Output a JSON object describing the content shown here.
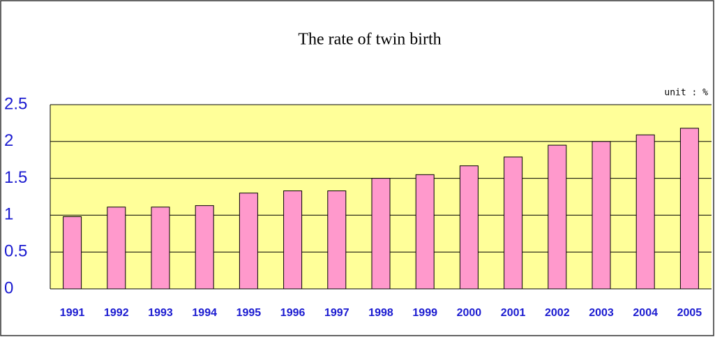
{
  "chart_data": {
    "type": "bar",
    "title": "The rate of twin birth",
    "unit_label": "unit : %",
    "categories": [
      "1991",
      "1992",
      "1993",
      "1994",
      "1995",
      "1996",
      "1997",
      "1998",
      "1999",
      "2000",
      "2001",
      "2002",
      "2003",
      "2004",
      "2005"
    ],
    "values": [
      0.98,
      1.11,
      1.11,
      1.13,
      1.3,
      1.33,
      1.33,
      1.5,
      1.55,
      1.67,
      1.79,
      1.95,
      2.0,
      2.09,
      2.18
    ],
    "color": "#ff99cc",
    "plot_background": "#ffff99",
    "ylim": [
      0,
      2.5
    ],
    "yticks": [
      0,
      0.5,
      1,
      1.5,
      2,
      2.5
    ],
    "grid": true
  }
}
